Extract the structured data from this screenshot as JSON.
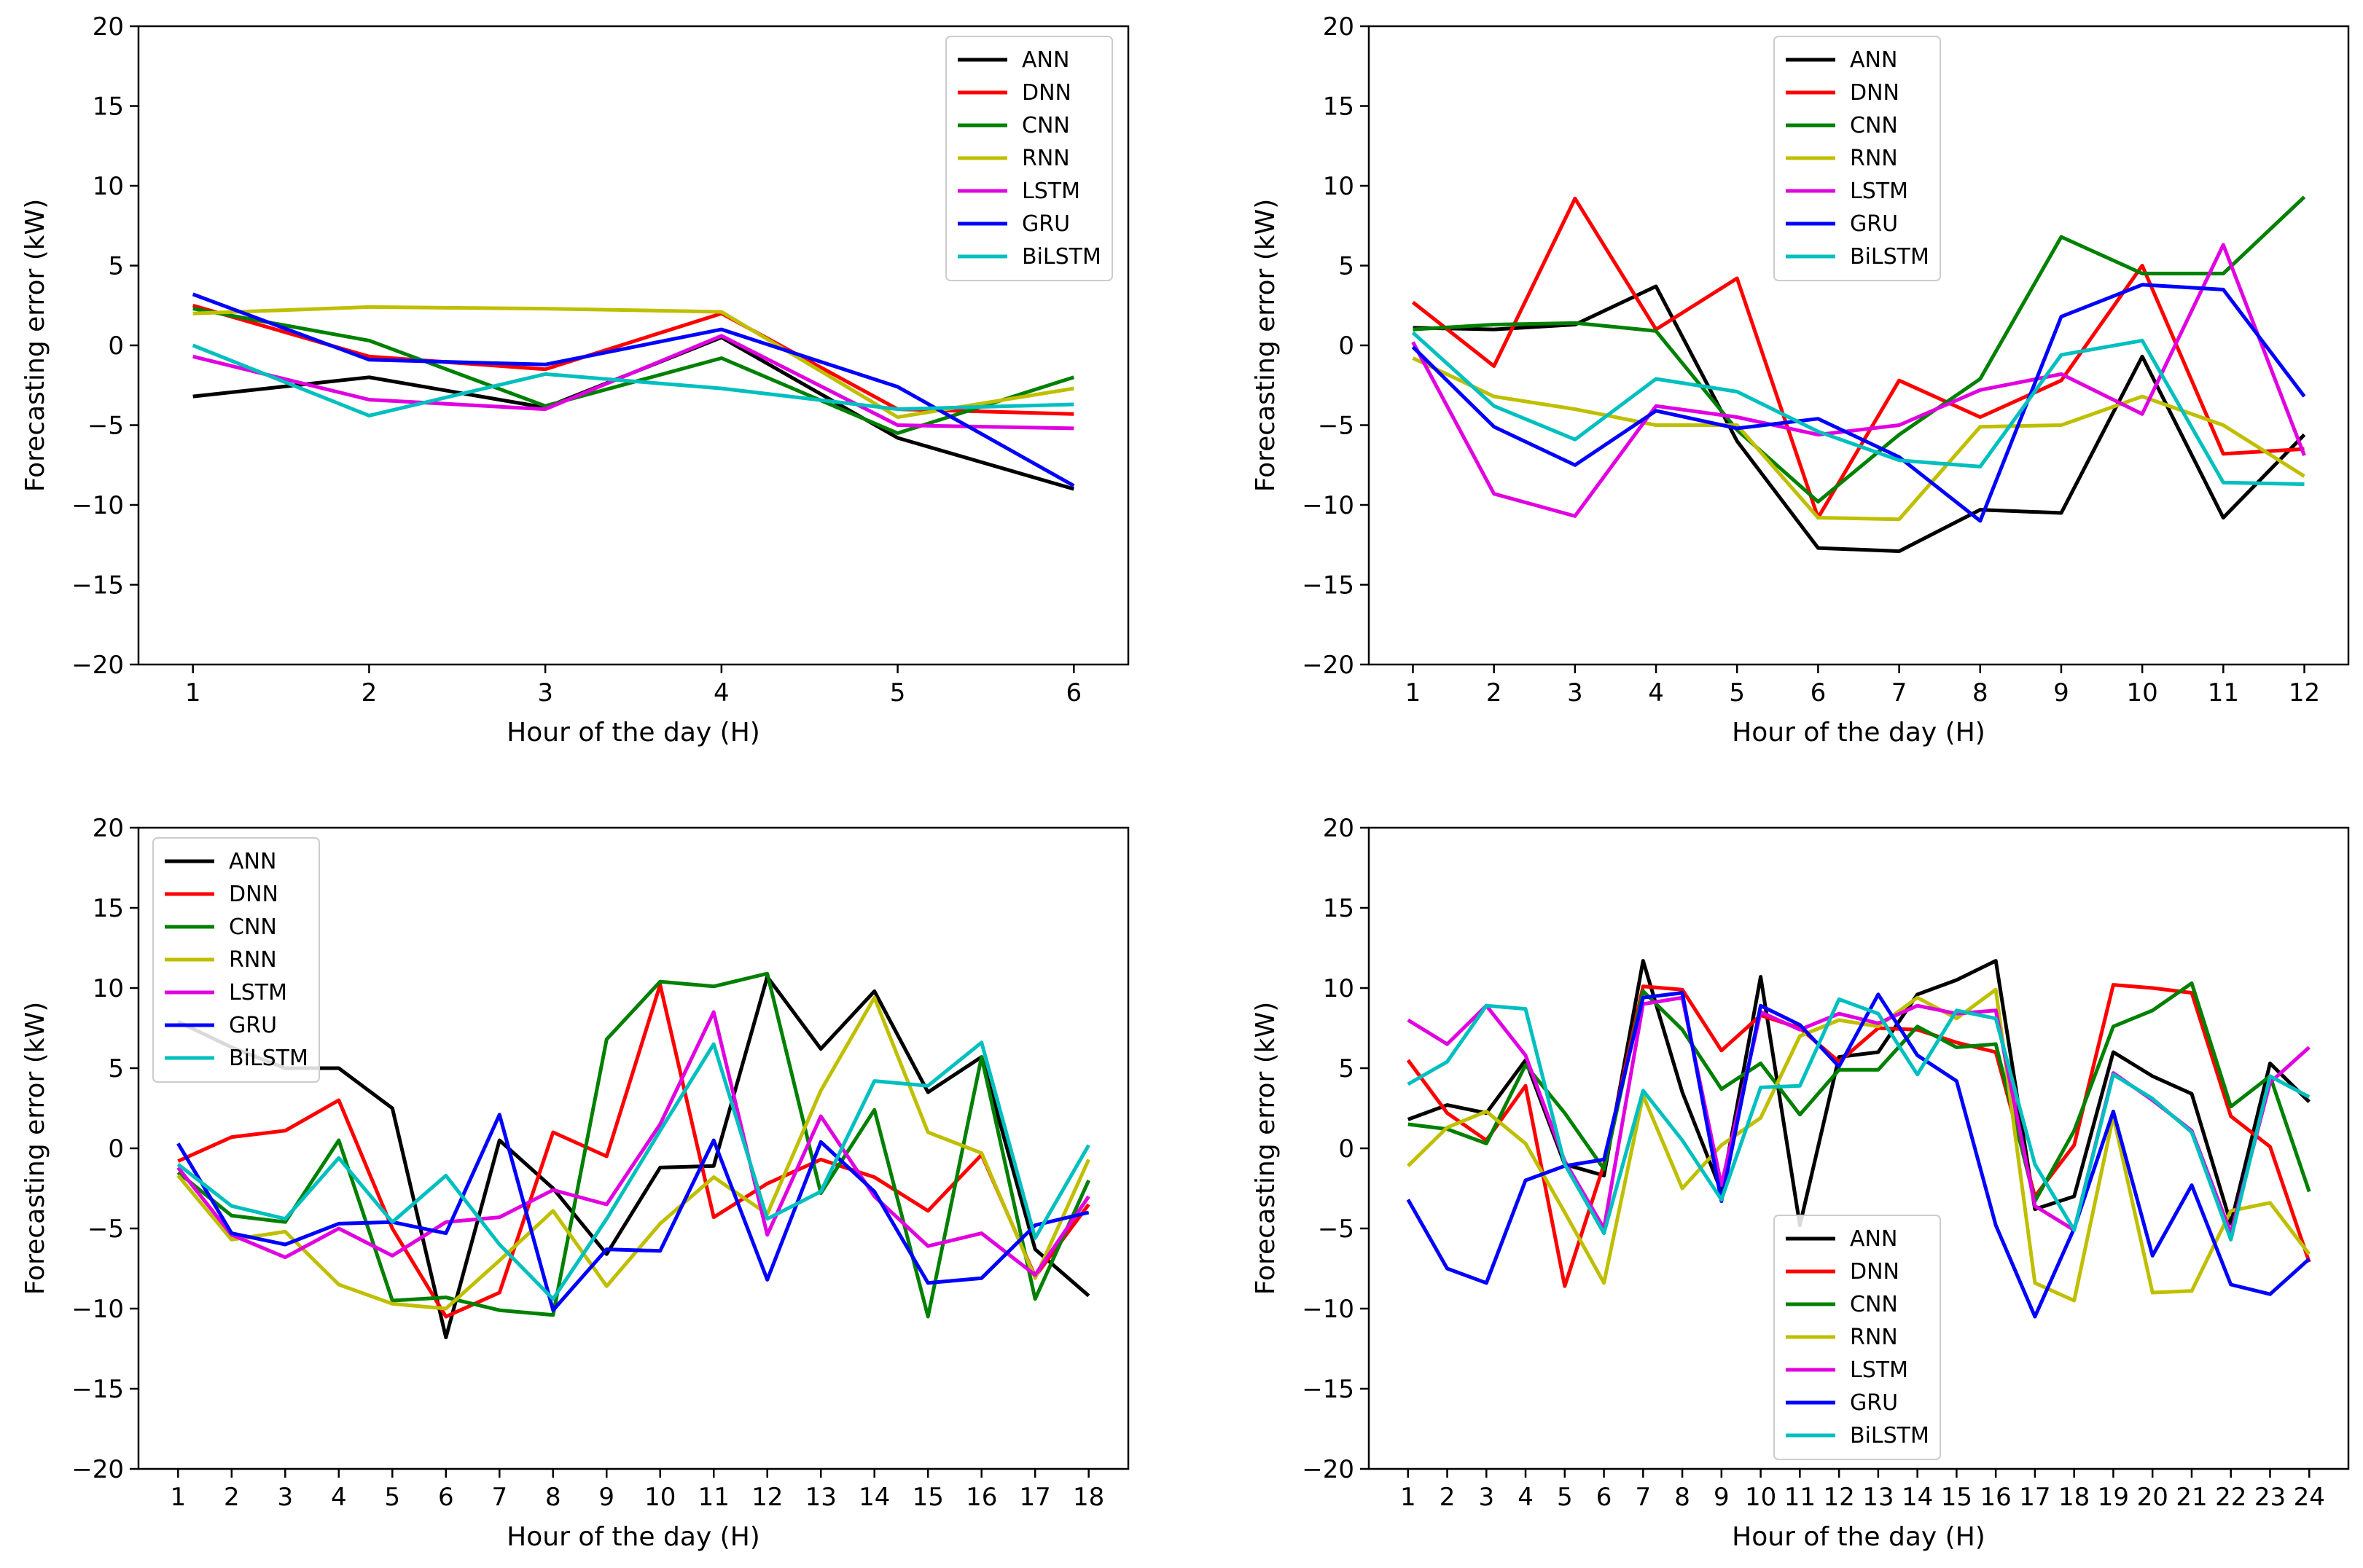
{
  "colors": {
    "ANN": "#000000",
    "DNN": "#ff0000",
    "CNN": "#008000",
    "RNN": "#bfbf00",
    "LSTM": "#e000e0",
    "GRU": "#0000ff",
    "BiLSTM": "#00bfbf"
  },
  "chart_data": [
    {
      "type": "line",
      "title": "",
      "xlabel": "Hour of the day (H)",
      "ylabel": "Forecasting error (kW)",
      "ylim": [
        -20,
        20
      ],
      "yticks": [
        "−20",
        "−15",
        "−10",
        "−5",
        "0",
        "5",
        "10",
        "15",
        "20"
      ],
      "x": [
        "1",
        "2",
        "3",
        "4",
        "5",
        "6"
      ],
      "legend_position": "top-right",
      "series": [
        {
          "name": "ANN",
          "values": [
            -3.2,
            -2.0,
            -3.9,
            0.5,
            -5.8,
            -9.0
          ]
        },
        {
          "name": "DNN",
          "values": [
            2.5,
            -0.7,
            -1.5,
            2.0,
            -4.0,
            -4.3
          ]
        },
        {
          "name": "CNN",
          "values": [
            2.3,
            0.3,
            -3.8,
            -0.8,
            -5.5,
            -2.0
          ]
        },
        {
          "name": "RNN",
          "values": [
            2.0,
            2.4,
            2.3,
            2.1,
            -4.5,
            -2.7
          ]
        },
        {
          "name": "LSTM",
          "values": [
            -0.7,
            -3.4,
            -4.0,
            0.6,
            -5.0,
            -5.2
          ]
        },
        {
          "name": "GRU",
          "values": [
            3.2,
            -0.9,
            -1.2,
            1.0,
            -2.6,
            -8.8
          ]
        },
        {
          "name": "BiLSTM",
          "values": [
            0.0,
            -4.4,
            -1.8,
            -2.7,
            -4.0,
            -3.7
          ]
        }
      ]
    },
    {
      "type": "line",
      "title": "",
      "xlabel": "Hour of the day (H)",
      "ylabel": "Forecasting error (kW)",
      "ylim": [
        -20,
        20
      ],
      "yticks": [
        "−20",
        "−15",
        "−10",
        "−5",
        "0",
        "5",
        "10",
        "15",
        "20"
      ],
      "x": [
        "1",
        "2",
        "3",
        "4",
        "5",
        "6",
        "7",
        "8",
        "9",
        "10",
        "11",
        "12"
      ],
      "legend_position": "top-center",
      "series": [
        {
          "name": "ANN",
          "values": [
            1.1,
            1.0,
            1.3,
            3.7,
            -6.0,
            -12.7,
            -12.9,
            -10.3,
            -10.5,
            -0.7,
            -10.8,
            -5.6
          ]
        },
        {
          "name": "DNN",
          "values": [
            2.7,
            -1.3,
            9.2,
            1.0,
            4.2,
            -10.8,
            -2.2,
            -4.5,
            -2.2,
            5.0,
            -6.8,
            -6.5
          ]
        },
        {
          "name": "CNN",
          "values": [
            1.0,
            1.3,
            1.4,
            0.9,
            -5.3,
            -9.8,
            -5.6,
            -2.1,
            6.8,
            4.5,
            4.5,
            9.3
          ]
        },
        {
          "name": "RNN",
          "values": [
            -0.8,
            -3.2,
            -4.0,
            -5.0,
            -5.0,
            -10.8,
            -10.9,
            -5.1,
            -5.0,
            -3.2,
            -5.0,
            -8.2
          ]
        },
        {
          "name": "LSTM",
          "values": [
            0.2,
            -9.3,
            -10.7,
            -3.8,
            -4.5,
            -5.6,
            -5.0,
            -2.8,
            -1.8,
            -4.3,
            6.3,
            -6.9
          ]
        },
        {
          "name": "GRU",
          "values": [
            -0.1,
            -5.1,
            -7.5,
            -4.1,
            -5.2,
            -4.6,
            -7.0,
            -11.0,
            1.8,
            3.8,
            3.5,
            -3.2
          ]
        },
        {
          "name": "BiLSTM",
          "values": [
            0.8,
            -3.8,
            -5.9,
            -2.1,
            -2.9,
            -5.4,
            -7.2,
            -7.6,
            -0.6,
            0.3,
            -8.6,
            -8.7
          ]
        }
      ]
    },
    {
      "type": "line",
      "title": "",
      "xlabel": "Hour of the day (H)",
      "ylabel": "Forecasting error (kW)",
      "ylim": [
        -20,
        20
      ],
      "yticks": [
        "−20",
        "−15",
        "−10",
        "−5",
        "0",
        "5",
        "10",
        "15",
        "20"
      ],
      "x": [
        "1",
        "2",
        "3",
        "4",
        "5",
        "6",
        "7",
        "8",
        "9",
        "10",
        "11",
        "12",
        "13",
        "14",
        "15",
        "16",
        "17",
        "18"
      ],
      "legend_position": "top-left",
      "series": [
        {
          "name": "ANN",
          "values": [
            7.9,
            6.3,
            5.0,
            5.0,
            2.5,
            -11.8,
            0.5,
            -2.5,
            -6.6,
            -1.2,
            -1.1,
            10.7,
            6.2,
            9.8,
            3.5,
            5.7,
            -6.3,
            -9.2
          ]
        },
        {
          "name": "DNN",
          "values": [
            -0.8,
            0.7,
            1.1,
            3.0,
            -5.0,
            -10.5,
            -9.0,
            1.0,
            -0.5,
            10.2,
            -4.3,
            -2.2,
            -0.7,
            -1.8,
            -3.9,
            -0.4,
            -8.0,
            -3.5
          ]
        },
        {
          "name": "CNN",
          "values": [
            -1.5,
            -4.2,
            -4.6,
            0.5,
            -9.5,
            -9.3,
            -10.1,
            -10.4,
            6.8,
            10.4,
            10.1,
            10.9,
            -2.8,
            2.4,
            -10.5,
            5.7,
            -9.4,
            -2.0
          ]
        },
        {
          "name": "RNN",
          "values": [
            -1.7,
            -5.7,
            -5.2,
            -8.5,
            -9.7,
            -10.0,
            -7.0,
            -3.9,
            -8.6,
            -4.7,
            -1.8,
            -4.1,
            3.6,
            9.4,
            1.0,
            -0.3,
            -8.1,
            -0.7
          ]
        },
        {
          "name": "LSTM",
          "values": [
            -1.2,
            -5.4,
            -6.8,
            -5.0,
            -6.7,
            -4.6,
            -4.3,
            -2.6,
            -3.5,
            1.5,
            8.5,
            -5.4,
            2.0,
            -3.0,
            -6.1,
            -5.3,
            -7.9,
            -3.0
          ]
        },
        {
          "name": "GRU",
          "values": [
            0.3,
            -5.3,
            -6.0,
            -4.7,
            -4.6,
            -5.3,
            2.1,
            -10.1,
            -6.3,
            -6.4,
            0.5,
            -8.2,
            0.4,
            -2.7,
            -8.4,
            -8.1,
            -4.8,
            -4.0
          ]
        },
        {
          "name": "BiLSTM",
          "values": [
            -1.0,
            -3.6,
            -4.4,
            -0.6,
            -4.6,
            -1.7,
            -6.0,
            -9.4,
            -4.4,
            1.1,
            6.5,
            -4.4,
            -2.7,
            4.2,
            3.9,
            6.6,
            -5.6,
            0.2
          ]
        }
      ]
    },
    {
      "type": "line",
      "title": "",
      "xlabel": "Hour of the day (H)",
      "ylabel": "Forecasting error (kW)",
      "ylim": [
        -20,
        20
      ],
      "yticks": [
        "−20",
        "−15",
        "−10",
        "−5",
        "0",
        "5",
        "10",
        "15",
        "20"
      ],
      "x": [
        "1",
        "2",
        "3",
        "4",
        "5",
        "6",
        "7",
        "8",
        "9",
        "10",
        "11",
        "12",
        "13",
        "14",
        "15",
        "16",
        "17",
        "18",
        "19",
        "20",
        "21",
        "22",
        "23",
        "24"
      ],
      "legend_position": "lower-center",
      "series": [
        {
          "name": "ANN",
          "values": [
            1.8,
            2.7,
            2.2,
            5.5,
            -1.0,
            -1.7,
            11.7,
            3.5,
            -2.7,
            10.7,
            -4.8,
            5.7,
            6.0,
            9.6,
            10.5,
            11.7,
            -3.8,
            -3.0,
            6.0,
            4.5,
            3.4,
            -4.7,
            5.3,
            2.9
          ]
        },
        {
          "name": "DNN",
          "values": [
            5.5,
            2.2,
            0.5,
            3.9,
            -8.6,
            -1.0,
            10.1,
            9.9,
            6.1,
            8.3,
            7.5,
            5.4,
            7.5,
            7.4,
            6.6,
            6.0,
            -3.0,
            0.2,
            10.2,
            10.0,
            9.7,
            2.0,
            0.1,
            -7.1
          ]
        },
        {
          "name": "CNN",
          "values": [
            1.5,
            1.2,
            0.3,
            5.2,
            2.2,
            -1.3,
            9.8,
            7.4,
            3.7,
            5.3,
            2.1,
            4.9,
            4.9,
            7.6,
            6.3,
            6.5,
            -3.3,
            1.1,
            7.6,
            8.6,
            10.3,
            2.6,
            4.5,
            -2.7
          ]
        },
        {
          "name": "RNN",
          "values": [
            -1.1,
            1.3,
            2.3,
            0.3,
            -4.0,
            -8.4,
            3.3,
            -2.5,
            0.2,
            1.9,
            7.0,
            8.0,
            7.6,
            9.4,
            8.1,
            9.9,
            -8.4,
            -9.5,
            2.0,
            -9.0,
            -8.9,
            -3.9,
            -3.4,
            -6.6
          ]
        },
        {
          "name": "LSTM",
          "values": [
            8.0,
            6.5,
            8.9,
            5.8,
            -0.8,
            -5.0,
            9.0,
            9.4,
            -2.3,
            8.5,
            7.4,
            8.4,
            7.8,
            8.9,
            8.4,
            8.6,
            -3.6,
            -5.1,
            4.7,
            3.0,
            1.1,
            -5.3,
            4.1,
            6.3
          ]
        },
        {
          "name": "GRU",
          "values": [
            -3.2,
            -7.5,
            -8.4,
            -2.0,
            -1.1,
            -0.7,
            9.4,
            9.7,
            -3.3,
            8.9,
            7.7,
            5.1,
            9.6,
            5.8,
            4.2,
            -4.8,
            -10.5,
            -5.0,
            2.3,
            -6.7,
            -2.3,
            -8.5,
            -9.1,
            -6.9
          ]
        },
        {
          "name": "BiLSTM",
          "values": [
            4.0,
            5.4,
            8.9,
            8.7,
            -1.0,
            -5.3,
            3.6,
            0.5,
            -3.2,
            3.8,
            3.9,
            9.3,
            8.4,
            4.6,
            8.6,
            8.1,
            -1.0,
            -5.1,
            4.6,
            3.1,
            1.0,
            -5.7,
            4.5,
            3.2
          ]
        }
      ]
    }
  ]
}
